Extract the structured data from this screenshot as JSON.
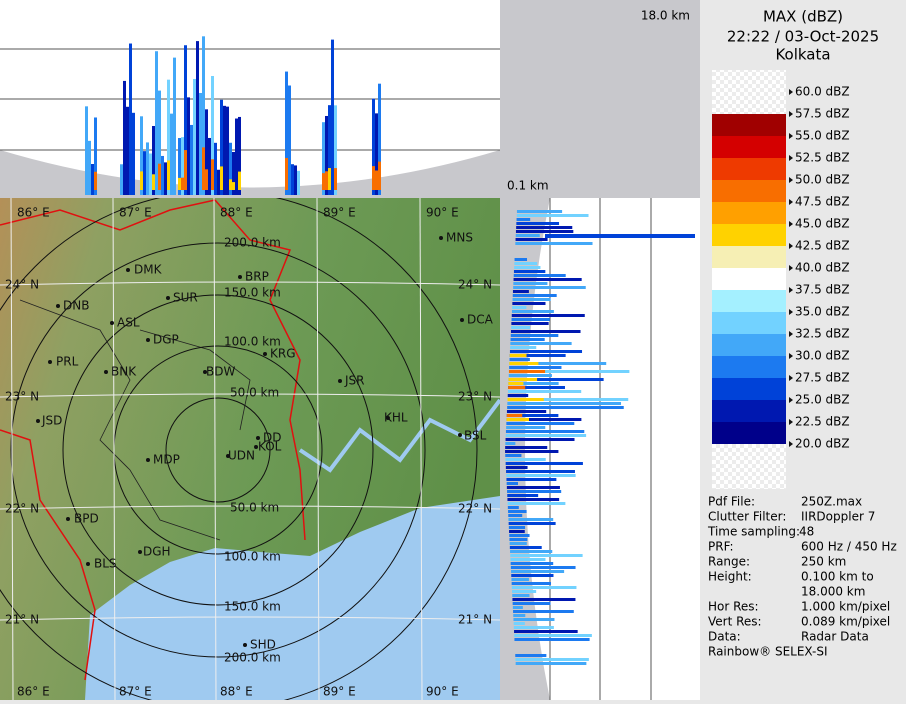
{
  "header": {
    "title": "MAX (dBZ)",
    "datetime": "22:22 / 03-Oct-2025",
    "location": "Kolkata"
  },
  "profile_labels": {
    "top": "18.0 km",
    "bottom": "0.1 km"
  },
  "legend": {
    "levels": [
      "60.0 dBZ",
      "57.5 dBZ",
      "55.0 dBZ",
      "52.5 dBZ",
      "50.0 dBZ",
      "47.5 dBZ",
      "45.0 dBZ",
      "42.5 dBZ",
      "40.0 dBZ",
      "37.5 dBZ",
      "35.0 dBZ",
      "32.5 dBZ",
      "30.0 dBZ",
      "27.5 dBZ",
      "25.0 dBZ",
      "22.5 dBZ",
      "20.0 dBZ"
    ],
    "colors": [
      "#f2f2f2",
      "#a00000",
      "#d40000",
      "#ee3a00",
      "#f86e00",
      "#ffa000",
      "#ffd200",
      "#f6efb4",
      "#ffffff",
      "#a4f0ff",
      "#72d2ff",
      "#42a8f8",
      "#1c7af0",
      "#0042d8",
      "#0018b0",
      "#00008a"
    ]
  },
  "map": {
    "longitudes": [
      "86° E",
      "87° E",
      "88° E",
      "89° E",
      "90° E"
    ],
    "latitudes": [
      "24° N",
      "23° N",
      "22° N",
      "21° N"
    ],
    "ranges": [
      "50.0 km",
      "100.0 km",
      "150.0 km",
      "200.0 km"
    ],
    "cities": [
      "MNS",
      "DMK",
      "BRP",
      "SUR",
      "DNB",
      "ASL",
      "DCA",
      "DGP",
      "KRG",
      "PRL",
      "BNK",
      "BDW",
      "JSR",
      "KHL",
      "JSD",
      "BSL",
      "DD",
      "KOL",
      "UDN",
      "MDP",
      "BPD",
      "DGH",
      "BLS",
      "SHD"
    ]
  },
  "info": {
    "rows": [
      [
        "Pdf File:",
        "250Z.max"
      ],
      [
        "Clutter Filter:",
        "IIRDoppler 7"
      ],
      [
        "Time sampling:",
        "48"
      ],
      [
        "PRF:",
        "600 Hz / 450 Hz"
      ],
      [
        "Range:",
        "250 km"
      ],
      [
        "Height:",
        "0.100 km to"
      ],
      [
        "",
        "18.000 km"
      ],
      [
        "Hor Res:",
        "1.000 km/pixel"
      ],
      [
        "Vert Res:",
        "0.089 km/pixel"
      ],
      [
        "Data:",
        "Radar Data"
      ]
    ],
    "footer": "Rainbow® SELEX-SI"
  }
}
